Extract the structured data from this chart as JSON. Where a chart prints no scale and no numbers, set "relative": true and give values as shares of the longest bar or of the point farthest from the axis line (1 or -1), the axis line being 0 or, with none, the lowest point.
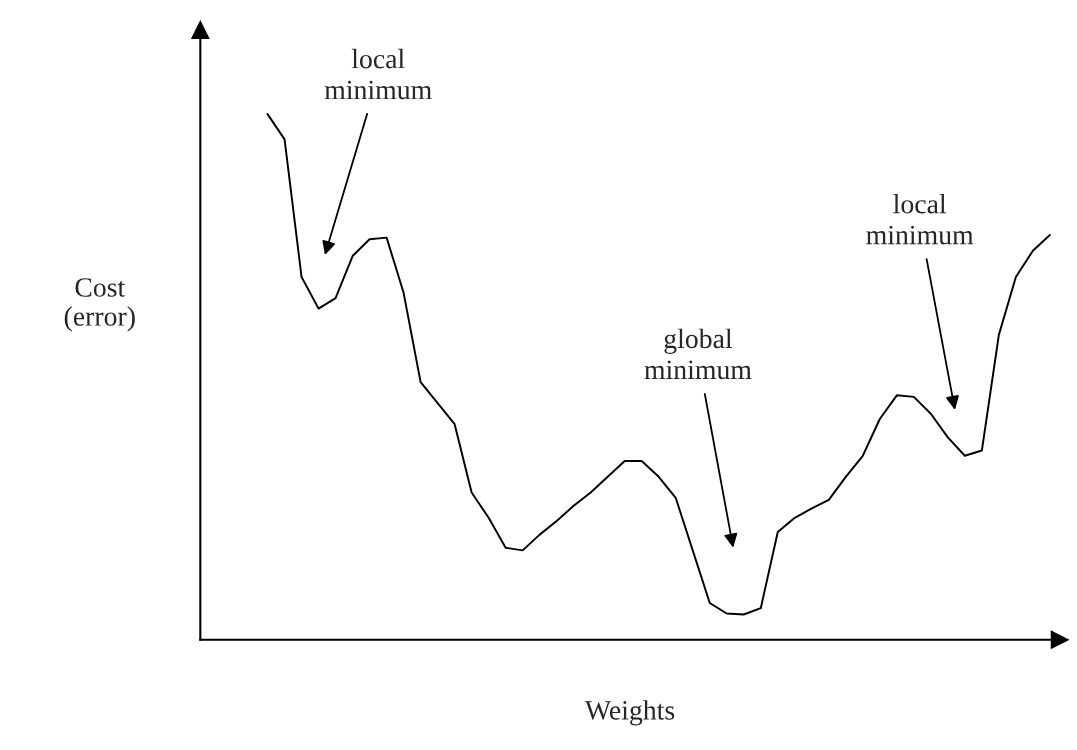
{
  "chart_data": {
    "type": "line",
    "relative": true,
    "xlabel": "Weights",
    "ylabel": "Cost\n(error)",
    "marker": "none",
    "line_style": "solid",
    "categories": [
      null,
      null,
      null,
      null,
      null,
      null,
      null,
      null,
      null,
      null,
      null,
      null,
      null,
      null,
      null,
      null,
      null,
      null,
      null,
      null,
      null,
      null,
      null,
      null,
      null,
      null,
      null,
      null,
      null,
      null,
      null,
      null,
      null,
      null,
      null,
      null,
      null,
      null,
      null,
      null,
      null,
      null,
      null,
      null,
      null,
      null,
      null
    ],
    "series": [
      {
        "color": "#000000",
        "values": [
          1.0,
          0.952,
          0.69,
          0.63,
          0.65,
          0.73,
          0.762,
          0.765,
          0.66,
          0.49,
          0.45,
          0.41,
          0.28,
          0.232,
          0.175,
          0.17,
          0.2,
          0.226,
          0.255,
          0.28,
          0.31,
          0.34,
          0.34,
          0.31,
          0.27,
          0.17,
          0.07,
          0.05,
          0.048,
          0.06,
          0.205,
          0.232,
          0.25,
          0.266,
          0.31,
          0.35,
          0.42,
          0.465,
          0.462,
          0.43,
          0.385,
          0.35,
          0.36,
          0.58,
          0.69,
          0.74,
          0.77
        ]
      }
    ],
    "annotations": [
      "local\nminimum",
      "global\nminimum",
      "local\nminimum"
    ]
  }
}
